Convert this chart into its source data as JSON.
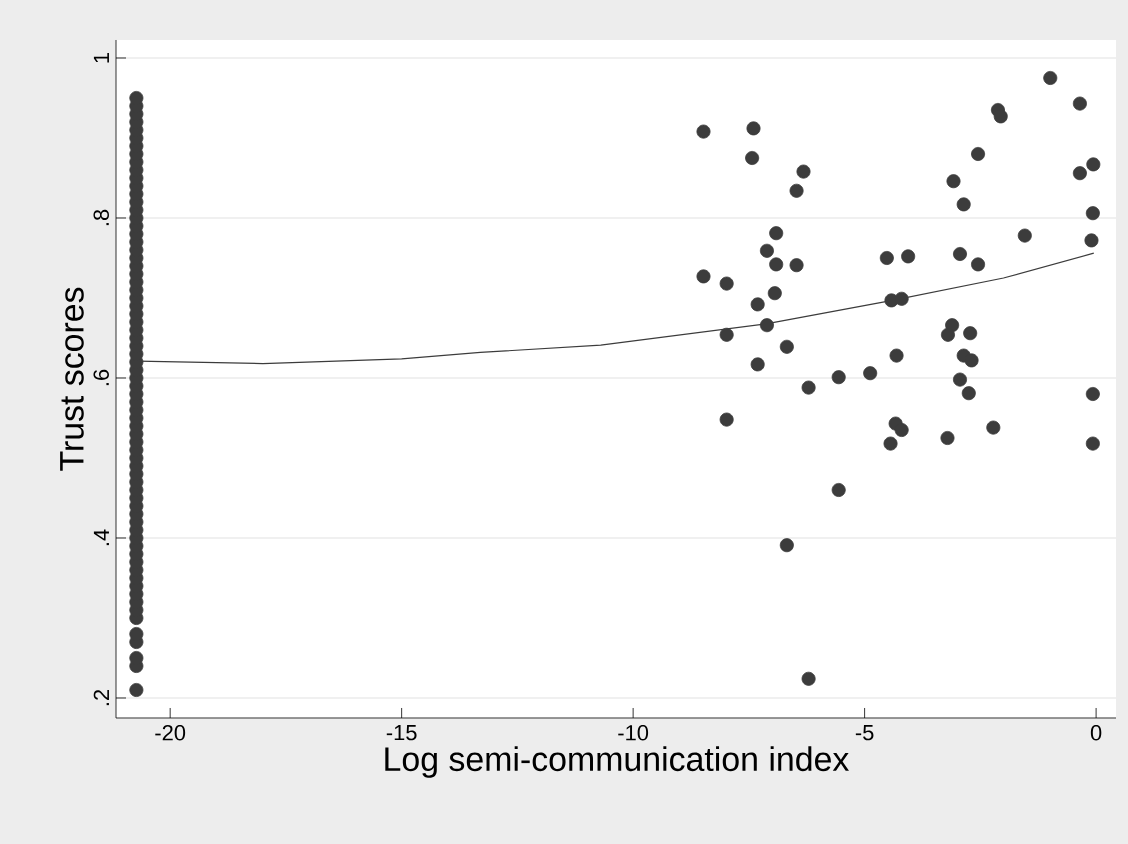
{
  "chart_data": {
    "type": "scatter",
    "xlabel": "Log semi-communication index",
    "ylabel": "Trust scores",
    "xlim": [
      -21.17,
      0.43
    ],
    "ylim": [
      0.175,
      1.0225
    ],
    "xticks": [
      -20,
      -15,
      -10,
      -5,
      0
    ],
    "yticks": [
      {
        "value": 0.2,
        "label": ".2"
      },
      {
        "value": 0.4,
        "label": ".4"
      },
      {
        "value": 0.6,
        "label": ".6"
      },
      {
        "value": 0.8,
        "label": ".8"
      },
      {
        "value": 1,
        "label": "1"
      }
    ],
    "grid": "y",
    "series": [
      {
        "marker": "circle",
        "color": "#3c3c3c",
        "x": [
          -20.73,
          -20.73,
          -20.73,
          -20.73,
          -20.73,
          -20.73,
          -20.73,
          -20.73,
          -20.73,
          -20.73,
          -20.73,
          -20.73,
          -20.73,
          -20.73,
          -20.73,
          -20.73,
          -20.73,
          -20.73,
          -20.73,
          -20.73,
          -20.73,
          -20.73,
          -20.73,
          -20.73,
          -20.73,
          -20.73,
          -20.73,
          -20.73,
          -20.73,
          -20.73,
          -20.73,
          -20.73,
          -20.73,
          -20.73,
          -20.73,
          -20.73,
          -20.73,
          -20.73,
          -20.73,
          -20.73,
          -20.73,
          -20.73,
          -20.73,
          -20.73,
          -20.73,
          -20.73,
          -20.73,
          -20.73,
          -20.73,
          -20.73,
          -20.73,
          -20.73,
          -20.73,
          -20.73,
          -20.73,
          -20.73,
          -20.73,
          -20.73,
          -20.73,
          -20.73,
          -20.73,
          -20.73,
          -20.73,
          -20.73,
          -20.73,
          -20.73,
          -20.73,
          -20.73,
          -20.73,
          -20.73,
          -20.73
        ],
        "values": [
          0.21,
          0.24,
          0.25,
          0.27,
          0.28,
          0.3,
          0.31,
          0.32,
          0.33,
          0.34,
          0.35,
          0.36,
          0.37,
          0.38,
          0.39,
          0.4,
          0.41,
          0.42,
          0.43,
          0.44,
          0.45,
          0.46,
          0.47,
          0.48,
          0.49,
          0.5,
          0.51,
          0.52,
          0.53,
          0.54,
          0.55,
          0.56,
          0.57,
          0.58,
          0.59,
          0.6,
          0.61,
          0.62,
          0.63,
          0.64,
          0.65,
          0.66,
          0.67,
          0.68,
          0.69,
          0.7,
          0.71,
          0.72,
          0.73,
          0.74,
          0.75,
          0.76,
          0.77,
          0.78,
          0.79,
          0.8,
          0.81,
          0.82,
          0.83,
          0.84,
          0.85,
          0.86,
          0.87,
          0.88,
          0.89,
          0.9,
          0.91,
          0.92,
          0.93,
          0.94,
          0.95
        ]
      },
      {
        "marker": "circle",
        "color": "#3c3c3c",
        "x": [
          -8.48,
          -7.4,
          -7.43,
          -6.32,
          -6.47,
          -0.99,
          -0.35,
          -2.12,
          -2.06,
          -2.55,
          -3.08,
          -2.86,
          -0.35,
          -0.06,
          -0.07,
          -0.1,
          -1.54,
          -6.91,
          -7.11,
          -6.91,
          -6.47,
          -8.48,
          -7.98,
          -6.94,
          -7.31,
          -7.11,
          -7.98,
          -6.68,
          -7.31,
          -4.52,
          -4.06,
          -2.94,
          -2.55,
          -4.42,
          -4.2,
          -3.11,
          -3.2,
          -2.72,
          -2.86,
          -2.69,
          -4.31,
          -6.21,
          -5.56,
          -4.88,
          -2.94,
          -2.75,
          -0.07,
          -7.98,
          -4.33,
          -4.2,
          -4.44,
          -3.21,
          -2.22,
          -0.07,
          -5.56,
          -6.68,
          -6.21
        ],
        "values": [
          0.908,
          0.912,
          0.875,
          0.858,
          0.834,
          0.975,
          0.943,
          0.935,
          0.927,
          0.88,
          0.846,
          0.817,
          0.856,
          0.867,
          0.806,
          0.772,
          0.778,
          0.781,
          0.759,
          0.742,
          0.741,
          0.727,
          0.718,
          0.706,
          0.692,
          0.666,
          0.654,
          0.639,
          0.617,
          0.75,
          0.752,
          0.755,
          0.742,
          0.697,
          0.699,
          0.666,
          0.654,
          0.656,
          0.628,
          0.622,
          0.628,
          0.588,
          0.601,
          0.606,
          0.598,
          0.581,
          0.58,
          0.548,
          0.543,
          0.535,
          0.518,
          0.525,
          0.538,
          0.518,
          0.46,
          0.391,
          0.224
        ]
      },
      {
        "type": "line",
        "color": "#3c3c3c",
        "marker": "none",
        "line_style": "solid",
        "x": [
          -20.7,
          -18,
          -15,
          -13.3,
          -10.7,
          -7.1,
          -4.4,
          -2,
          -0.05
        ],
        "values": [
          0.621,
          0.618,
          0.624,
          0.632,
          0.641,
          0.668,
          0.697,
          0.725,
          0.756
        ]
      }
    ]
  }
}
